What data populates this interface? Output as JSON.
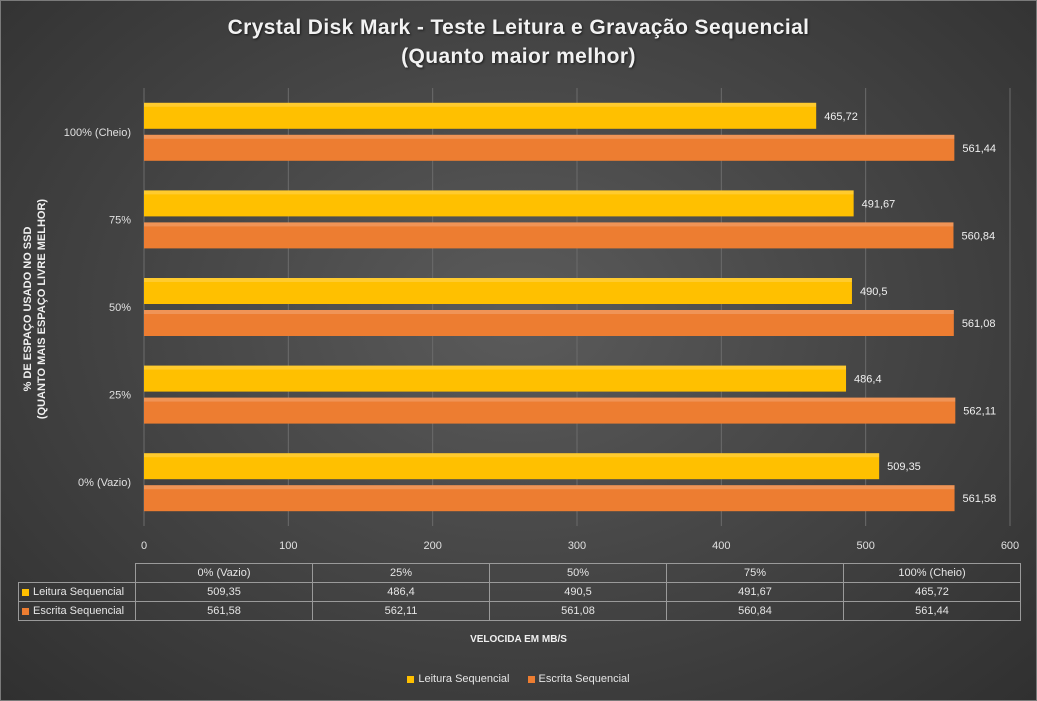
{
  "chart_data": {
    "type": "bar",
    "orientation": "horizontal",
    "title_line1": "Crystal Disk Mark - Teste Leitura e Gravação Sequencial",
    "title_line2": "(Quanto maior melhor)",
    "ylabel_line1": "% DE ESPAÇO USADO NO SSD",
    "ylabel_line2": "(QUANTO MAIS ESPAÇO LIVRE MELHOR)",
    "xlabel": "VELOCIDA EM MB/S",
    "categories": [
      "0% (Vazio)",
      "25%",
      "50%",
      "75%",
      "100% (Cheio)"
    ],
    "x_ticks": [
      "0",
      "100",
      "200",
      "300",
      "400",
      "500",
      "600"
    ],
    "xlim": [
      0,
      600
    ],
    "grid": "vertical",
    "legend_placement": "bottom",
    "series": [
      {
        "name": "Leitura Sequencial",
        "color": "#FFC000",
        "values": [
          509.35,
          486.4,
          490.5,
          491.67,
          465.72
        ],
        "labels": [
          "509,35",
          "486,4",
          "490,5",
          "491,67",
          "465,72"
        ]
      },
      {
        "name": "Escrita Sequencial",
        "color": "#ED7D31",
        "values": [
          561.58,
          562.11,
          561.08,
          560.84,
          561.44
        ],
        "labels": [
          "561,58",
          "562,11",
          "561,08",
          "560,84",
          "561,44"
        ]
      }
    ]
  }
}
